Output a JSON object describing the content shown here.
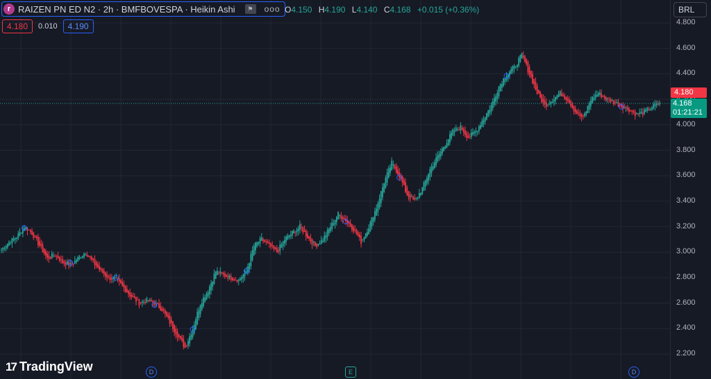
{
  "header": {
    "symbol_logo": "r",
    "title": "RAIZEN PN ED N2 · 2h · BMFBOVESPA · Heikin Ashi",
    "flag_icon": "flag-icon",
    "more_label": "ooo"
  },
  "ohlc": {
    "o_label": "O",
    "o_value": "4.150",
    "h_label": "H",
    "h_value": "4.190",
    "l_label": "L",
    "l_value": "4.140",
    "c_label": "C",
    "c_value": "4.168",
    "change": "+0.015 (+0.36%)"
  },
  "trade": {
    "sell": "4.180",
    "spread": "0.010",
    "buy": "4.190"
  },
  "currency": "BRL",
  "price_axis": [
    "4.800",
    "4.600",
    "4.400",
    "4.200",
    "4.000",
    "3.800",
    "3.600",
    "3.400",
    "3.200",
    "3.000",
    "2.800",
    "2.600",
    "2.400",
    "2.200"
  ],
  "price_tags": {
    "ask": "4.180",
    "last": "4.168",
    "countdown": "01:21:21"
  },
  "brand": {
    "logo_mark": "17",
    "name": "TradingView"
  },
  "events": [
    {
      "type": "dividend",
      "label": "D"
    },
    {
      "type": "earnings",
      "label": "E"
    },
    {
      "type": "dividend",
      "label": "D"
    }
  ],
  "colors": {
    "up": "#26a69a",
    "down": "#f23645",
    "background": "#161a25",
    "grid": "#232733"
  },
  "chart_data": {
    "type": "candlestick-heikin-ashi",
    "ylim": [
      2.2,
      4.8
    ],
    "title": "",
    "series": [
      {
        "name": "",
        "close": [
          3.02,
          3.08,
          3.12,
          3.2,
          3.15,
          3.05,
          2.95,
          2.98,
          2.92,
          2.9,
          2.95,
          3.0,
          2.92,
          2.85,
          2.8,
          2.78,
          2.72,
          2.65,
          2.6,
          2.62,
          2.6,
          2.55,
          2.45,
          2.35,
          2.25,
          2.4,
          2.6,
          2.7,
          2.85,
          2.82,
          2.8,
          2.78,
          2.85,
          3.05,
          3.1,
          3.05,
          3.0,
          3.1,
          3.15,
          3.2,
          3.12,
          3.05,
          3.1,
          3.2,
          3.3,
          3.25,
          3.18,
          3.08,
          3.2,
          3.35,
          3.55,
          3.7,
          3.6,
          3.45,
          3.4,
          3.5,
          3.65,
          3.75,
          3.85,
          3.95,
          3.98,
          3.9,
          3.95,
          4.05,
          4.15,
          4.3,
          4.4,
          4.45,
          4.55,
          4.4,
          4.25,
          4.15,
          4.2,
          4.25,
          4.2,
          4.1,
          4.05,
          4.2,
          4.25,
          4.2,
          4.18,
          4.15,
          4.12,
          4.08,
          4.1,
          4.14,
          4.17
        ]
      }
    ]
  }
}
